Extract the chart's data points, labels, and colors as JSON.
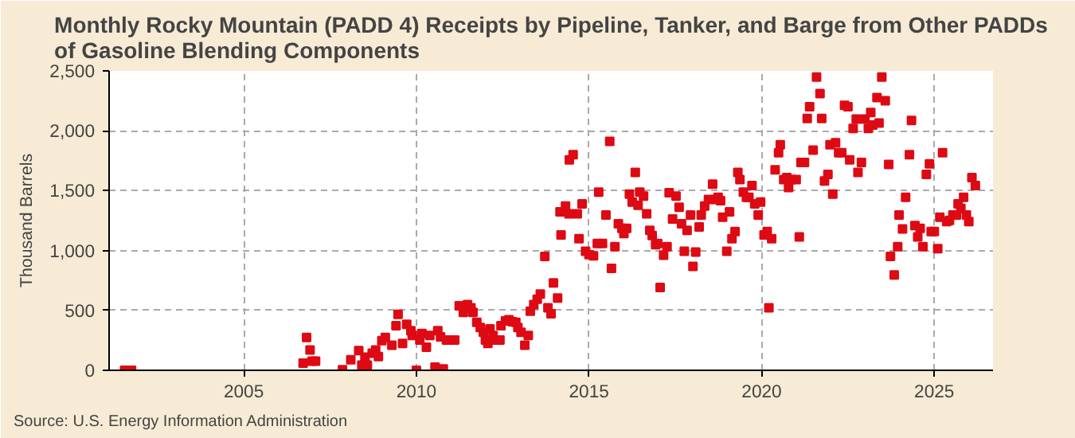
{
  "chart_data": {
    "type": "scatter",
    "title": "Monthly Rocky Mountain (PADD 4) Receipts by Pipeline, Tanker, and Barge from Other PADDs\nof Gasoline Blending Components",
    "ylabel": "Thousand Barrels",
    "annotations": [
      "Source: U.S. Energy Information Administration"
    ],
    "marker": "square",
    "grid": true,
    "xlim": [
      2001.1,
      2026.7
    ],
    "xticks": [
      2005,
      2010,
      2015,
      2020,
      2025
    ],
    "ylim": [
      0,
      2500
    ],
    "yticks": [
      {
        "value": 0,
        "label": "0"
      },
      {
        "value": 500,
        "label": "500"
      },
      {
        "value": 1000,
        "label": "1,000"
      },
      {
        "value": 1500,
        "label": "1,500"
      },
      {
        "value": 2000,
        "label": "2,000"
      },
      {
        "value": 2500,
        "label": "2,500"
      }
    ],
    "series": [
      {
        "color": "#dd0a14",
        "x": [
          2001.55,
          2001.75,
          2006.72,
          2006.82,
          2006.92,
          2006.98,
          2007.08,
          2007.86,
          2008.1,
          2008.33,
          2008.42,
          2008.51,
          2008.58,
          2008.72,
          2008.82,
          2008.9,
          2009.0,
          2009.1,
          2009.29,
          2009.41,
          2009.47,
          2009.6,
          2009.72,
          2009.84,
          2009.88,
          2010.0,
          2010.1,
          2010.16,
          2010.29,
          2010.39,
          2010.54,
          2010.62,
          2010.7,
          2010.78,
          2010.87,
          2011.11,
          2011.24,
          2011.36,
          2011.48,
          2011.58,
          2011.64,
          2011.75,
          2011.85,
          2011.94,
          2012.0,
          2012.07,
          2012.13,
          2012.22,
          2012.29,
          2012.42,
          2012.45,
          2012.58,
          2012.68,
          2012.78,
          2012.88,
          2012.94,
          2013.03,
          2013.14,
          2013.24,
          2013.3,
          2013.4,
          2013.5,
          2013.59,
          2013.72,
          2013.81,
          2013.9,
          2013.97,
          2014.09,
          2014.19,
          2014.16,
          2014.32,
          2014.43,
          2014.54,
          2014.42,
          2014.66,
          2014.71,
          2014.8,
          2014.9,
          2015.0,
          2015.13,
          2015.28,
          2015.24,
          2015.39,
          2015.49,
          2015.6,
          2015.65,
          2015.75,
          2015.85,
          2015.95,
          2016.01,
          2016.09,
          2016.17,
          2016.25,
          2016.34,
          2016.42,
          2016.47,
          2016.58,
          2016.67,
          2016.76,
          2016.83,
          2016.93,
          2016.99,
          2017.06,
          2017.16,
          2017.26,
          2017.32,
          2017.42,
          2017.52,
          2017.61,
          2017.68,
          2017.76,
          2017.84,
          2017.94,
          2018.01,
          2018.09,
          2018.19,
          2018.25,
          2018.35,
          2018.46,
          2018.58,
          2018.68,
          2018.74,
          2018.81,
          2018.87,
          2018.99,
          2019.07,
          2019.14,
          2019.23,
          2019.31,
          2019.37,
          2019.47,
          2019.56,
          2019.63,
          2019.72,
          2019.8,
          2019.9,
          2019.97,
          2020.07,
          2020.16,
          2020.21,
          2020.29,
          2020.39,
          2020.49,
          2020.54,
          2020.64,
          2020.73,
          2020.78,
          2020.87,
          2021.0,
          2021.09,
          2021.14,
          2021.24,
          2021.32,
          2021.39,
          2021.49,
          2021.59,
          2021.69,
          2021.74,
          2021.82,
          2021.92,
          2021.98,
          2022.06,
          2022.14,
          2022.23,
          2022.32,
          2022.4,
          2022.5,
          2022.55,
          2022.65,
          2022.74,
          2022.79,
          2022.89,
          2022.99,
          2023.09,
          2023.16,
          2023.22,
          2023.34,
          2023.4,
          2023.48,
          2023.58,
          2023.68,
          2023.73,
          2023.84,
          2023.94,
          2023.98,
          2024.08,
          2024.17,
          2024.28,
          2024.34,
          2024.44,
          2024.52,
          2024.59,
          2024.67,
          2024.77,
          2024.86,
          2024.91,
          2025.0,
          2025.1,
          2025.16,
          2025.24,
          2025.36,
          2025.44,
          2025.54,
          2025.64,
          2025.69,
          2025.77,
          2025.85,
          2025.93,
          2026.0,
          2026.09,
          2026.19
        ],
        "values": [
          0,
          0,
          60,
          275,
          170,
          77,
          77,
          5,
          88,
          165,
          44,
          110,
          44,
          143,
          170,
          115,
          247,
          275,
          209,
          373,
          467,
          225,
          384,
          330,
          291,
          0,
          253,
          307,
          192,
          291,
          27,
          330,
          280,
          11,
          253,
          253,
          538,
          483,
          549,
          522,
          483,
          401,
          357,
          318,
          253,
          225,
          346,
          291,
          253,
          253,
          373,
          412,
          423,
          406,
          401,
          357,
          318,
          209,
          291,
          494,
          549,
          593,
          637,
          950,
          522,
          472,
          730,
          604,
          1131,
          1323,
          1372,
          1757,
          1800,
          1307,
          1307,
          1098,
          1389,
          994,
          966,
          955,
          1487,
          1059,
          1059,
          1296,
          1911,
          851,
          1032,
          1224,
          1186,
          1142,
          1186,
          1471,
          1405,
          1652,
          1378,
          1487,
          1455,
          1307,
          1169,
          1125,
          1049,
          1059,
          692,
          961,
          1032,
          1482,
          1263,
          1455,
          1362,
          1224,
          994,
          1169,
          1296,
          867,
          988,
          1197,
          1296,
          1372,
          1427,
          1554,
          1427,
          1444,
          1416,
          1279,
          994,
          1323,
          1098,
          1158,
          1652,
          1592,
          1487,
          1444,
          1444,
          1543,
          1389,
          1296,
          1405,
          1131,
          1158,
          522,
          1098,
          1674,
          1817,
          1883,
          1592,
          1609,
          1526,
          1592,
          1592,
          1114,
          1735,
          1735,
          2103,
          2201,
          1839,
          2449,
          2311,
          2103,
          1581,
          1636,
          1883,
          1471,
          1900,
          1817,
          1817,
          2212,
          2201,
          1757,
          2020,
          2097,
          1652,
          1735,
          2097,
          2020,
          2152,
          2048,
          2278,
          2064,
          2449,
          2251,
          1718,
          950,
          796,
          1032,
          1296,
          1180,
          1444,
          1801,
          2086,
          1208,
          1114,
          1186,
          1032,
          1636,
          1724,
          1158,
          1158,
          1016,
          1279,
          1817,
          1241,
          1252,
          1296,
          1296,
          1389,
          1351,
          1444,
          1296,
          1241,
          1609,
          1543
        ]
      }
    ]
  }
}
